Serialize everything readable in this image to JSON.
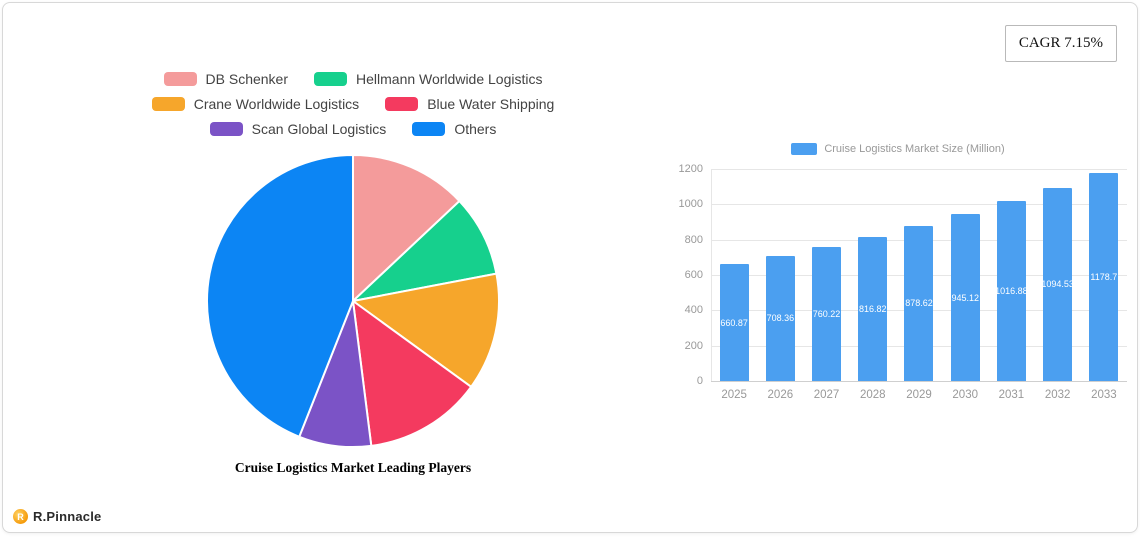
{
  "cagr": {
    "label": "CAGR 7.15%"
  },
  "logo": {
    "text": "R.Pinnacle"
  },
  "chart_data": [
    {
      "type": "pie",
      "title": "Cruise Logistics Market Leading Players",
      "labels": [
        "DB Schenker",
        "Hellmann Worldwide Logistics",
        "Crane Worldwide Logistics",
        "Blue Water Shipping",
        "Scan Global Logistics",
        "Others"
      ],
      "values": [
        13,
        9,
        13,
        13,
        8,
        44
      ],
      "colors": [
        "#f49b9b",
        "#16d08d",
        "#f6a62b",
        "#f43a5f",
        "#7b53c6",
        "#0c85f4"
      ],
      "legend_position": "top",
      "start_angle_deg": -90,
      "direction": "clockwise"
    },
    {
      "type": "bar",
      "legend": "Cruise Logistics Market Size (Million)",
      "categories": [
        "2025",
        "2026",
        "2027",
        "2028",
        "2029",
        "2030",
        "2031",
        "2032",
        "2033"
      ],
      "values": [
        660.87,
        708.36,
        760.22,
        816.82,
        878.62,
        945.12,
        1016.88,
        1094.53,
        1178.7
      ],
      "ylim": [
        0,
        1200
      ],
      "yticks": [
        0,
        200,
        400,
        600,
        800,
        1000,
        1200
      ],
      "bar_color": "#4b9ff0",
      "grid": true,
      "legend_position": "top"
    }
  ]
}
